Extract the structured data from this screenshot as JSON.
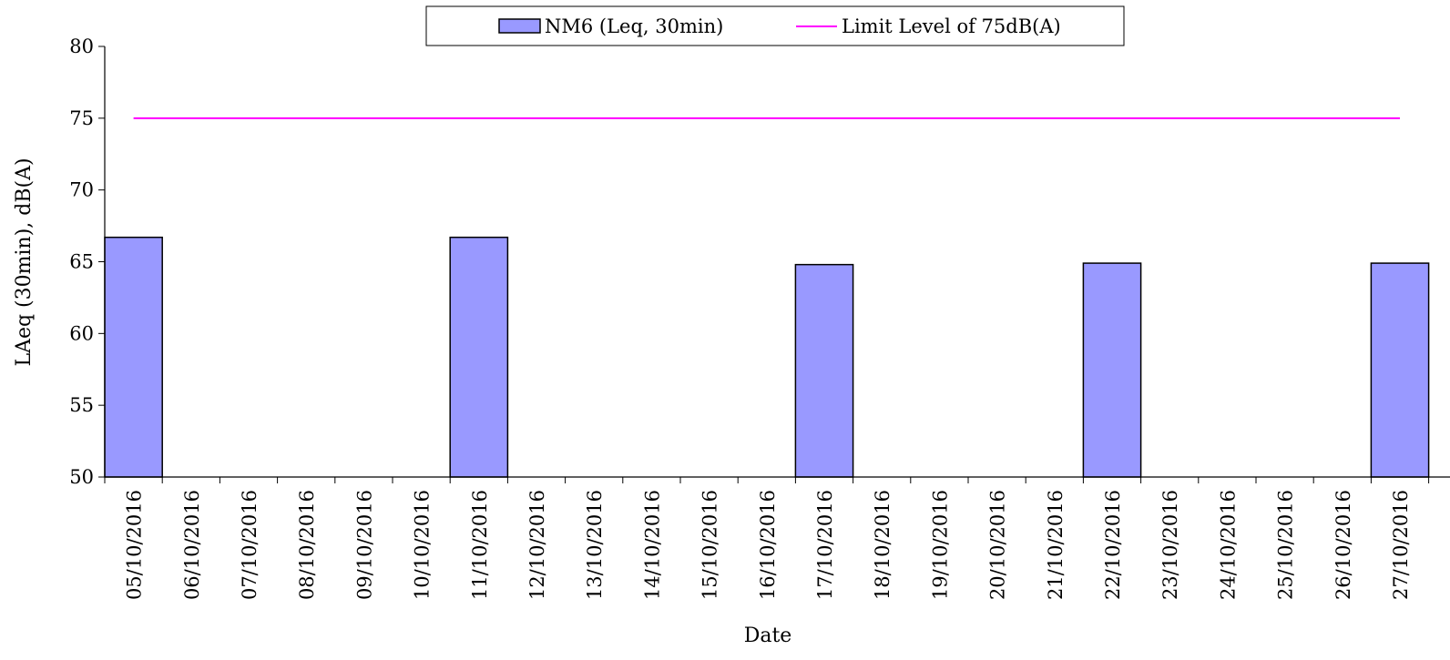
{
  "chart_data": {
    "type": "bar",
    "title": "",
    "xlabel": "Date",
    "ylabel": "LAeq (30min), dB(A)",
    "ylim": [
      50,
      80
    ],
    "yticks": [
      50,
      55,
      60,
      65,
      70,
      75,
      80
    ],
    "categories": [
      "05/10/2016",
      "06/10/2016",
      "07/10/2016",
      "08/10/2016",
      "09/10/2016",
      "10/10/2016",
      "11/10/2016",
      "12/10/2016",
      "13/10/2016",
      "14/10/2016",
      "15/10/2016",
      "16/10/2016",
      "17/10/2016",
      "18/10/2016",
      "19/10/2016",
      "20/10/2016",
      "21/10/2016",
      "22/10/2016",
      "23/10/2016",
      "24/10/2016",
      "25/10/2016",
      "26/10/2016",
      "27/10/2016"
    ],
    "series": [
      {
        "name": "NM6 (Leq, 30min)",
        "type": "bar",
        "color": "#9999ff",
        "values": [
          66.7,
          null,
          null,
          null,
          null,
          null,
          66.7,
          null,
          null,
          null,
          null,
          null,
          64.8,
          null,
          null,
          null,
          null,
          64.9,
          null,
          null,
          null,
          null,
          64.9
        ]
      },
      {
        "name": "Limit Level of 75dB(A)",
        "type": "line",
        "color": "#ff00ff",
        "values": [
          75,
          75,
          75,
          75,
          75,
          75,
          75,
          75,
          75,
          75,
          75,
          75,
          75,
          75,
          75,
          75,
          75,
          75,
          75,
          75,
          75,
          75,
          75
        ]
      }
    ],
    "grid": false,
    "legend_position": "top-center"
  }
}
